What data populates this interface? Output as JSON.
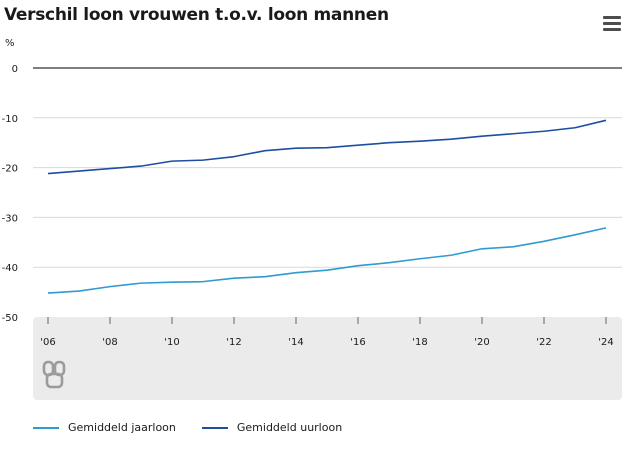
{
  "title": "Verschil loon vrouwen t.o.v. loon mannen",
  "menu_icon": "hamburger-menu-icon",
  "logo_icon": "cbs-logo-icon",
  "chart_data": {
    "type": "line",
    "title": "Verschil loon vrouwen t.o.v. loon mannen",
    "ylabel": "%",
    "xlabel": "",
    "ylim": [
      -50,
      0
    ],
    "yticks": [
      0,
      -10,
      -20,
      -30,
      -40,
      -50
    ],
    "ytick_labels": [
      "0",
      "-10",
      "-20",
      "-30",
      "-40",
      "-50"
    ],
    "x": [
      2006,
      2007,
      2008,
      2009,
      2010,
      2011,
      2012,
      2013,
      2014,
      2015,
      2016,
      2017,
      2018,
      2019,
      2020,
      2021,
      2022,
      2023,
      2024
    ],
    "xticks": [
      2006,
      2008,
      2010,
      2012,
      2014,
      2016,
      2018,
      2020,
      2022,
      2024
    ],
    "xtick_labels": [
      "'06",
      "'08",
      "'10",
      "'12",
      "'14",
      "'16",
      "'18",
      "'20",
      "'22",
      "'24"
    ],
    "grid": true,
    "legend_position": "bottom-left",
    "series": [
      {
        "name": "Gemiddeld jaarloon",
        "color": "#2e9bd1",
        "values": [
          -45.2,
          -44.8,
          -43.9,
          -43.2,
          -43.0,
          -42.9,
          -42.2,
          -41.9,
          -41.1,
          -40.6,
          -39.7,
          -39.1,
          -38.3,
          -37.6,
          -36.3,
          -35.9,
          -34.8,
          -33.5,
          -32.1
        ]
      },
      {
        "name": "Gemiddeld uurloon",
        "color": "#1d4ea0",
        "values": [
          -21.2,
          -20.7,
          -20.2,
          -19.7,
          -18.7,
          -18.5,
          -17.8,
          -16.6,
          -16.1,
          -16.0,
          -15.5,
          -15.0,
          -14.7,
          -14.3,
          -13.7,
          -13.2,
          -12.7,
          -12.0,
          -10.5
        ]
      }
    ]
  }
}
